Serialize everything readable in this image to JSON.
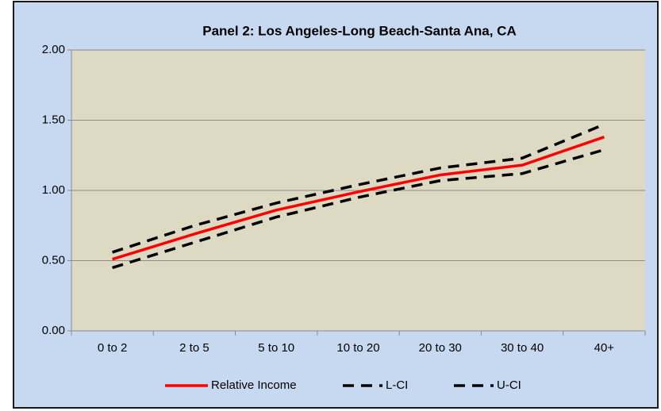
{
  "chart_data": {
    "type": "line",
    "title": "Panel 2: Los Angeles-Long Beach-Santa Ana, CA",
    "categories": [
      "0 to 2",
      "2 to 5",
      "5 to 10",
      "10 to 20",
      "20 to 30",
      "30 to 40",
      "40+"
    ],
    "series": [
      {
        "name": "Relative Income",
        "color": "#ff0000",
        "style": "solid",
        "values": [
          0.51,
          0.69,
          0.86,
          0.99,
          1.11,
          1.18,
          1.38
        ]
      },
      {
        "name": "L-CI",
        "color": "#000000",
        "style": "dashed",
        "values": [
          0.45,
          0.63,
          0.81,
          0.95,
          1.07,
          1.12,
          1.29
        ]
      },
      {
        "name": "U-CI",
        "color": "#000000",
        "style": "dashed",
        "values": [
          0.56,
          0.75,
          0.91,
          1.04,
          1.16,
          1.23,
          1.47
        ]
      }
    ],
    "ylim": [
      0,
      2
    ],
    "yticks": [
      {
        "value": 0,
        "label": "0.00"
      },
      {
        "value": 0.5,
        "label": "0.50"
      },
      {
        "value": 1,
        "label": "1.00"
      },
      {
        "value": 1.5,
        "label": "1.50"
      },
      {
        "value": 2,
        "label": "2.00"
      }
    ],
    "grid": true,
    "legend": "bottom"
  }
}
